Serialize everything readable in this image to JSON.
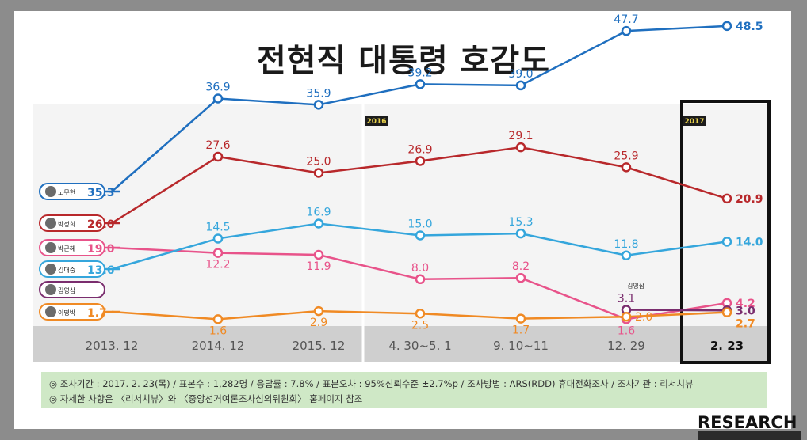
{
  "title": "전현직 대통령 호감도",
  "year_badges": [
    "2016",
    "2017"
  ],
  "footer": {
    "line1": "◎ 조사기간 : 2017. 2. 23(목)  /  표본수 : 1,282명  /  응답률 : 7.8%  /  표본오차 : 95%신뢰수준 ±2.7%p  /  조사방법 : ARS(RDD) 휴대전화조사  /  조사기관 : 리서치뷰",
    "line2": "◎ 자세한 사항은 〈리서치뷰〉와 〈중앙선거여론조사심의위원회〉 홈페이지 참조"
  },
  "logo": "RESEARCH",
  "colors": {
    "노무현": "#1f6fbf",
    "박정희": "#b8282b",
    "박근혜": "#e8538a",
    "김대중": "#35a6dc",
    "김영삼": "#7a2d6e",
    "이명박": "#f08a24",
    "axis_band": "#cfcfcf",
    "plot_bg": "#f4f4f4",
    "footer_bg": "#cfe8c6"
  },
  "chart_data": {
    "type": "line",
    "title": "전현직 대통령 호감도",
    "categories": [
      "2013. 12",
      "2014. 12",
      "2015. 12",
      "4. 30~5. 1",
      "9. 10~11",
      "12. 29",
      "2. 23"
    ],
    "xlabel": "",
    "ylabel": "",
    "ylim": [
      0,
      55
    ],
    "grid": false,
    "series": [
      {
        "name": "노무현",
        "start_label": "35.3",
        "values": [
          35.3,
          36.9,
          35.9,
          39.2,
          39.0,
          47.7,
          48.5
        ],
        "labels": [
          "35.3",
          "36.9",
          "35.9",
          "39.2",
          "39.0",
          "47.7",
          "48.5"
        ]
      },
      {
        "name": "박정희",
        "start_label": "26.0",
        "values": [
          26.0,
          27.6,
          25.0,
          26.9,
          29.1,
          25.9,
          20.9
        ],
        "labels": [
          "26.0",
          "27.6",
          "25.0",
          "26.9",
          "29.1",
          "25.9",
          "20.9"
        ]
      },
      {
        "name": "박근혜",
        "start_label": "19.0",
        "values": [
          19.0,
          12.2,
          11.9,
          8.0,
          8.2,
          1.6,
          4.2
        ],
        "labels": [
          "19.0",
          "12.2",
          "11.9",
          "8.0",
          "8.2",
          "1.6",
          "4.2"
        ]
      },
      {
        "name": "김대중",
        "start_label": "13.6",
        "values": [
          13.6,
          14.5,
          16.9,
          15.0,
          15.3,
          11.8,
          14.0
        ],
        "labels": [
          "13.6",
          "14.5",
          "16.9",
          "15.0",
          "15.3",
          "11.8",
          "14.0"
        ]
      },
      {
        "name": "김영삼",
        "start_label": "",
        "values": [
          null,
          null,
          null,
          null,
          null,
          3.1,
          3.0
        ],
        "labels": [
          "",
          "",
          "",
          "",
          "",
          "3.1",
          "3.0"
        ]
      },
      {
        "name": "이명박",
        "start_label": "1.7",
        "values": [
          1.7,
          1.6,
          2.9,
          2.5,
          1.7,
          2.0,
          2.7
        ],
        "labels": [
          "1.7",
          "1.6",
          "2.9",
          "2.5",
          "1.7",
          "2.0",
          "2.7"
        ]
      }
    ]
  }
}
